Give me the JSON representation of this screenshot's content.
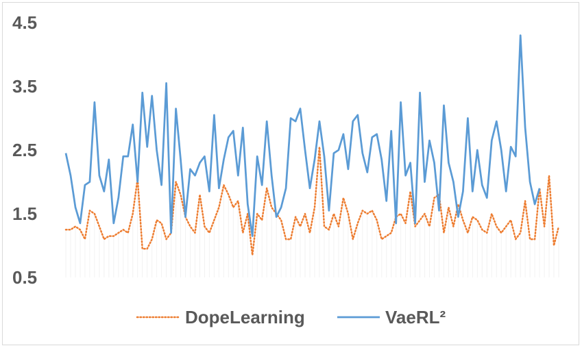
{
  "chart_data": {
    "type": "line",
    "title": "",
    "xlabel": "",
    "ylabel": "",
    "ylim": [
      0.5,
      4.5
    ],
    "yticks": [
      "4.5",
      "3.5",
      "2.5",
      "1.5",
      "0.5"
    ],
    "grid": false,
    "legend_position": "bottom",
    "series": [
      {
        "name": "DopeLearning",
        "style": "dotted",
        "color": "#ED7D31",
        "values": [
          1.25,
          1.25,
          1.3,
          1.25,
          1.1,
          1.55,
          1.5,
          1.3,
          1.1,
          1.15,
          1.15,
          1.2,
          1.25,
          1.2,
          1.5,
          2.05,
          0.95,
          0.95,
          1.1,
          1.4,
          1.35,
          1.1,
          1.2,
          2.0,
          1.8,
          1.45,
          1.3,
          1.2,
          1.8,
          1.3,
          1.2,
          1.4,
          1.6,
          1.95,
          1.8,
          1.6,
          1.7,
          1.2,
          1.5,
          0.85,
          1.5,
          1.4,
          1.9,
          1.6,
          1.5,
          1.4,
          1.1,
          1.1,
          1.45,
          1.3,
          1.5,
          1.2,
          1.6,
          2.55,
          1.3,
          1.25,
          1.5,
          1.3,
          1.75,
          1.5,
          1.1,
          1.35,
          1.55,
          1.5,
          1.55,
          1.4,
          1.1,
          1.15,
          1.2,
          1.45,
          1.5,
          1.35,
          1.85,
          1.3,
          1.4,
          1.5,
          1.3,
          1.75,
          1.8,
          1.2,
          1.6,
          1.3,
          1.65,
          1.4,
          1.2,
          1.45,
          1.4,
          1.25,
          1.2,
          1.5,
          1.3,
          1.2,
          1.3,
          1.4,
          1.1,
          1.2,
          1.7,
          1.1,
          1.1,
          1.9,
          1.3,
          2.1,
          1.0,
          1.3
        ]
      },
      {
        "name": "VaeRL²",
        "style": "solid",
        "color": "#5B9BD5",
        "values": [
          2.45,
          2.1,
          1.6,
          1.35,
          1.95,
          2.0,
          3.25,
          2.1,
          1.85,
          2.35,
          1.35,
          1.75,
          2.4,
          2.4,
          2.9,
          2.0,
          3.4,
          2.55,
          3.35,
          2.5,
          1.95,
          3.55,
          1.2,
          3.15,
          2.35,
          1.45,
          2.2,
          2.1,
          2.3,
          2.4,
          1.85,
          3.05,
          1.9,
          2.35,
          2.7,
          2.8,
          2.1,
          2.85,
          1.65,
          1.15,
          2.4,
          1.95,
          2.95,
          2.1,
          1.45,
          1.6,
          1.9,
          3.0,
          2.95,
          3.15,
          2.5,
          1.9,
          2.35,
          2.95,
          2.4,
          1.55,
          2.45,
          2.5,
          2.75,
          2.2,
          2.95,
          3.05,
          2.45,
          2.15,
          2.7,
          2.75,
          2.35,
          1.7,
          2.8,
          1.35,
          3.25,
          2.1,
          2.3,
          1.35,
          3.4,
          2.0,
          2.65,
          2.3,
          1.55,
          3.2,
          2.3,
          2.0,
          1.45,
          1.85,
          3.0,
          1.85,
          2.5,
          1.95,
          1.75,
          2.65,
          2.95,
          2.5,
          1.85,
          2.55,
          2.4,
          4.3,
          2.85,
          2.0,
          1.65,
          1.9
        ]
      }
    ]
  }
}
